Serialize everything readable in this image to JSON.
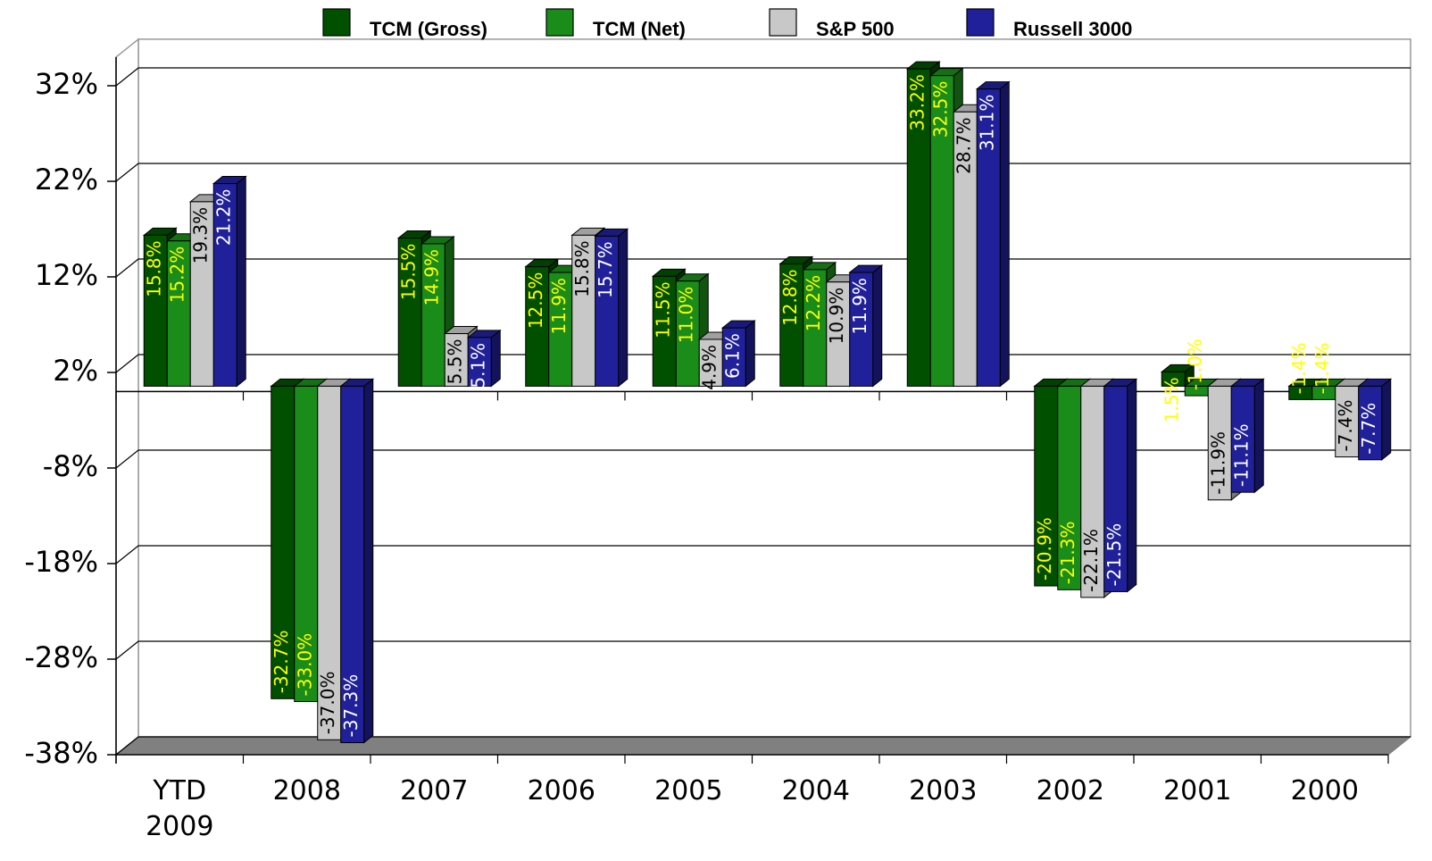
{
  "chart_data": {
    "type": "bar3d",
    "categories": [
      "YTD 2009",
      "2008",
      "2007",
      "2006",
      "2005",
      "2004",
      "2003",
      "2002",
      "2001",
      "2000"
    ],
    "series": [
      {
        "name": "TCM (Gross)",
        "color": "#005000",
        "label_color": "#ffff00",
        "values": [
          15.8,
          -32.7,
          15.5,
          12.5,
          11.5,
          12.8,
          33.2,
          -20.9,
          1.5,
          -1.4
        ],
        "value_labels": [
          "15.8%",
          "-32.7%",
          "15.5%",
          "12.5%",
          "11.5%",
          "12.8%",
          "33.2%",
          "-20.9%",
          "1.5%",
          "-1.4%"
        ]
      },
      {
        "name": "TCM (Net)",
        "color": "#1a8c1a",
        "label_color": "#ffff00",
        "values": [
          15.2,
          -33.0,
          14.9,
          11.9,
          11.0,
          12.2,
          32.5,
          -21.3,
          -1.0,
          -1.4
        ],
        "value_labels": [
          "15.2%",
          "-33.0%",
          "14.9%",
          "11.9%",
          "11.0%",
          "12.2%",
          "32.5%",
          "-21.3%",
          "-1.0%",
          "-1.4%"
        ]
      },
      {
        "name": "S&P 500",
        "color": "#c8c8c8",
        "label_color": "#000000",
        "values": [
          19.3,
          -37.0,
          5.5,
          15.8,
          4.9,
          10.9,
          28.7,
          -22.1,
          -11.9,
          -7.4
        ],
        "value_labels": [
          "19.3%",
          "-37.0%",
          "5.5%",
          "15.8%",
          "4.9%",
          "10.9%",
          "28.7%",
          "-22.1%",
          "-11.9%",
          "-7.4%"
        ]
      },
      {
        "name": "Russell 3000",
        "color": "#20209a",
        "label_color": "#ffffff",
        "values": [
          21.2,
          -37.3,
          5.1,
          15.7,
          6.1,
          11.9,
          31.1,
          -21.5,
          -11.1,
          -7.7
        ],
        "value_labels": [
          "21.2%",
          "-37.3%",
          "5.1%",
          "15.7%",
          "6.1%",
          "11.9%",
          "31.1%",
          "-21.5%",
          "-11.1%",
          "-7.7%"
        ]
      }
    ],
    "ylim": [
      -38,
      35
    ],
    "yticks": [
      {
        "value": -38,
        "label": "-38%"
      },
      {
        "value": -28,
        "label": "-28%"
      },
      {
        "value": -18,
        "label": "-18%"
      },
      {
        "value": -8,
        "label": "-8%"
      },
      {
        "value": 2,
        "label": "2%"
      },
      {
        "value": 12,
        "label": "12%"
      },
      {
        "value": 22,
        "label": "22%"
      },
      {
        "value": 32,
        "label": "32%"
      }
    ],
    "grid": true
  }
}
